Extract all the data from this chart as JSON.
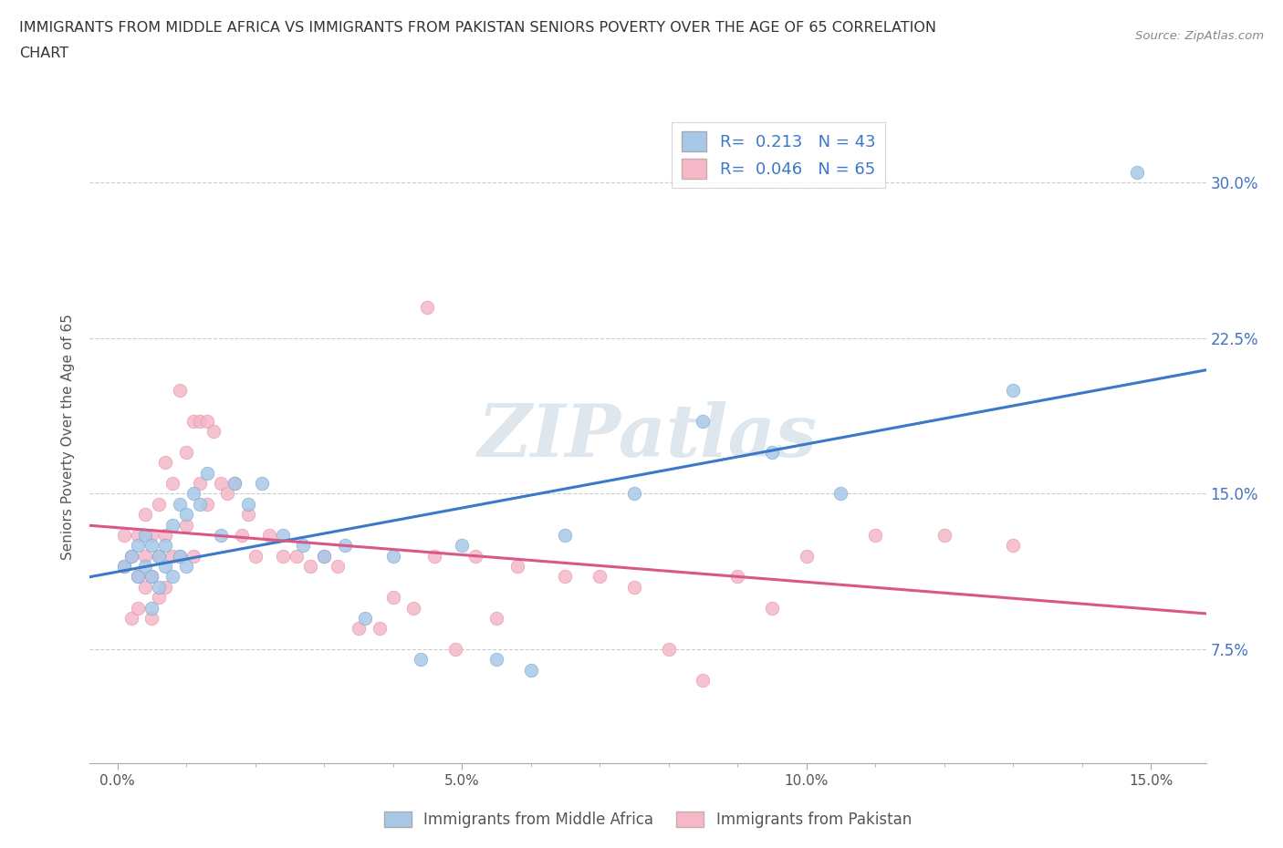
{
  "title_line1": "IMMIGRANTS FROM MIDDLE AFRICA VS IMMIGRANTS FROM PAKISTAN SENIORS POVERTY OVER THE AGE OF 65 CORRELATION",
  "title_line2": "CHART",
  "source": "Source: ZipAtlas.com",
  "ylabel": "Seniors Poverty Over the Age of 65",
  "xticklabels": [
    "0.0%",
    "",
    "",
    "",
    "",
    "5.0%",
    "",
    "",
    "",
    "",
    "10.0%",
    "",
    "",
    "",
    "",
    "15.0%"
  ],
  "xtick_vals": [
    0.0,
    0.01,
    0.02,
    0.03,
    0.04,
    0.05,
    0.06,
    0.07,
    0.08,
    0.09,
    0.1,
    0.11,
    0.12,
    0.13,
    0.14,
    0.15
  ],
  "ytick_right_labels": [
    "7.5%",
    "15.0%",
    "22.5%",
    "30.0%"
  ],
  "xlim": [
    -0.004,
    0.158
  ],
  "ylim": [
    0.02,
    0.335
  ],
  "r_blue": 0.213,
  "n_blue": 43,
  "r_pink": 0.046,
  "n_pink": 65,
  "legend_label_blue": "Immigrants from Middle Africa",
  "legend_label_pink": "Immigrants from Pakistan",
  "blue_color": "#a8c8e8",
  "pink_color": "#f4b8c8",
  "blue_edge_color": "#7aabcf",
  "pink_edge_color": "#e890aa",
  "blue_line_color": "#3c78c8",
  "pink_line_color": "#d85888",
  "watermark_color": "#d0dce8",
  "blue_scatter_x": [
    0.001,
    0.002,
    0.003,
    0.003,
    0.004,
    0.004,
    0.005,
    0.005,
    0.005,
    0.006,
    0.006,
    0.007,
    0.007,
    0.008,
    0.008,
    0.009,
    0.009,
    0.01,
    0.01,
    0.011,
    0.012,
    0.013,
    0.015,
    0.017,
    0.019,
    0.021,
    0.024,
    0.027,
    0.03,
    0.033,
    0.036,
    0.04,
    0.044,
    0.05,
    0.055,
    0.06,
    0.065,
    0.075,
    0.085,
    0.095,
    0.105,
    0.13,
    0.148
  ],
  "blue_scatter_y": [
    0.115,
    0.12,
    0.125,
    0.11,
    0.13,
    0.115,
    0.125,
    0.11,
    0.095,
    0.12,
    0.105,
    0.125,
    0.115,
    0.135,
    0.11,
    0.145,
    0.12,
    0.14,
    0.115,
    0.15,
    0.145,
    0.16,
    0.13,
    0.155,
    0.145,
    0.155,
    0.13,
    0.125,
    0.12,
    0.125,
    0.09,
    0.12,
    0.07,
    0.125,
    0.07,
    0.065,
    0.13,
    0.15,
    0.185,
    0.17,
    0.15,
    0.2,
    0.305
  ],
  "pink_scatter_x": [
    0.001,
    0.001,
    0.002,
    0.002,
    0.003,
    0.003,
    0.003,
    0.004,
    0.004,
    0.004,
    0.005,
    0.005,
    0.005,
    0.006,
    0.006,
    0.006,
    0.007,
    0.007,
    0.007,
    0.008,
    0.008,
    0.009,
    0.009,
    0.01,
    0.01,
    0.011,
    0.011,
    0.012,
    0.012,
    0.013,
    0.013,
    0.014,
    0.015,
    0.016,
    0.017,
    0.018,
    0.019,
    0.02,
    0.022,
    0.024,
    0.026,
    0.028,
    0.03,
    0.032,
    0.035,
    0.038,
    0.04,
    0.043,
    0.046,
    0.049,
    0.052,
    0.055,
    0.058,
    0.065,
    0.07,
    0.075,
    0.08,
    0.085,
    0.09,
    0.095,
    0.1,
    0.11,
    0.12,
    0.13,
    0.045
  ],
  "pink_scatter_y": [
    0.13,
    0.115,
    0.12,
    0.09,
    0.13,
    0.11,
    0.095,
    0.14,
    0.12,
    0.105,
    0.13,
    0.11,
    0.09,
    0.145,
    0.12,
    0.1,
    0.165,
    0.13,
    0.105,
    0.155,
    0.12,
    0.2,
    0.12,
    0.17,
    0.135,
    0.185,
    0.12,
    0.185,
    0.155,
    0.185,
    0.145,
    0.18,
    0.155,
    0.15,
    0.155,
    0.13,
    0.14,
    0.12,
    0.13,
    0.12,
    0.12,
    0.115,
    0.12,
    0.115,
    0.085,
    0.085,
    0.1,
    0.095,
    0.12,
    0.075,
    0.12,
    0.09,
    0.115,
    0.11,
    0.11,
    0.105,
    0.075,
    0.06,
    0.11,
    0.095,
    0.12,
    0.13,
    0.13,
    0.125,
    0.24
  ]
}
